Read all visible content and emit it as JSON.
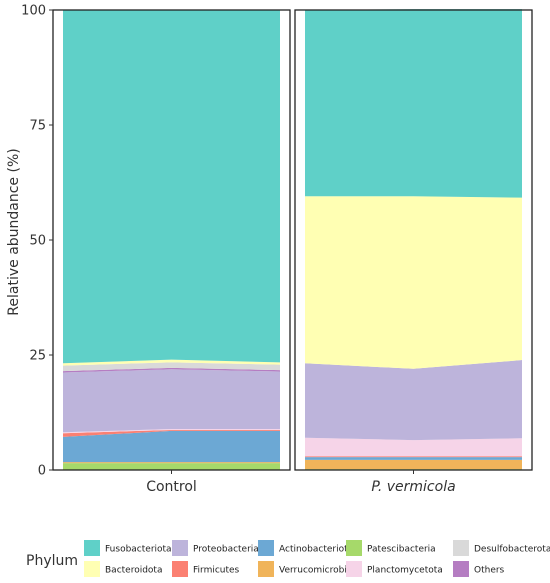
{
  "chart_data": {
    "type": "area",
    "stacked": true,
    "ylabel": "Relative abundance (%)",
    "ylim": [
      0,
      100
    ],
    "yticks": [
      0,
      25,
      50,
      75,
      100
    ],
    "grid": false,
    "legend_title": "Phylum",
    "legend_position": "bottom",
    "panels": [
      {
        "name": "Control",
        "italic": false,
        "x": [
          1,
          2,
          3
        ],
        "stacks": {
          "Patescibacteria": [
            1.5,
            1.5,
            1.5
          ],
          "Verrucomicrobiota": [
            0.2,
            0.2,
            0.2
          ],
          "Actinobacteriota": [
            5.5,
            6.8,
            6.8
          ],
          "Firmicutes": [
            0.8,
            0.2,
            0.2
          ],
          "Planctomycetota": [
            0.2,
            0.2,
            0.2
          ],
          "Proteobacteria": [
            13.0,
            13.0,
            12.5
          ],
          "Others": [
            0.3,
            0.3,
            0.3
          ],
          "Desulfobacterota": [
            1.2,
            1.2,
            1.2
          ],
          "Bacteroidota": [
            0.5,
            0.6,
            0.5
          ],
          "Fusobacteriota": [
            76.8,
            76.0,
            76.6
          ]
        }
      },
      {
        "name": "P. vermicola",
        "italic": true,
        "x": [
          1,
          2,
          3
        ],
        "stacks": {
          "Patescibacteria": [
            0.2,
            0.2,
            0.2
          ],
          "Verrucomicrobiota": [
            2.0,
            2.0,
            2.0
          ],
          "Actinobacteriota": [
            0.6,
            0.6,
            0.6
          ],
          "Firmicutes": [
            0.2,
            0.2,
            0.2
          ],
          "Planctomycetota": [
            4.0,
            3.5,
            3.9
          ],
          "Proteobacteria": [
            16.2,
            15.5,
            17.0
          ],
          "Others": [
            0.0,
            0.0,
            0.0
          ],
          "Desulfobacterota": [
            0.0,
            0.0,
            0.0
          ],
          "Bacteroidota": [
            36.3,
            37.5,
            35.3
          ],
          "Fusobacteriota": [
            40.5,
            40.7,
            41.0
          ]
        }
      }
    ],
    "legend": [
      {
        "name": "Fusobacteriota",
        "color": "#5fd0c8"
      },
      {
        "name": "Proteobacteria",
        "color": "#bdb4db"
      },
      {
        "name": "Actinobacteriota",
        "color": "#6ca8d4"
      },
      {
        "name": "Patescibacteria",
        "color": "#a6d96a"
      },
      {
        "name": "Desulfobacterota",
        "color": "#d9d9d9"
      },
      {
        "name": "Bacteroidota",
        "color": "#ffffb3"
      },
      {
        "name": "Firmicutes",
        "color": "#fb8072"
      },
      {
        "name": "Verrucomicrobiota",
        "color": "#f0b45a"
      },
      {
        "name": "Planctomycetota",
        "color": "#f6d4e8"
      },
      {
        "name": "Others",
        "color": "#b57dc2"
      }
    ]
  }
}
